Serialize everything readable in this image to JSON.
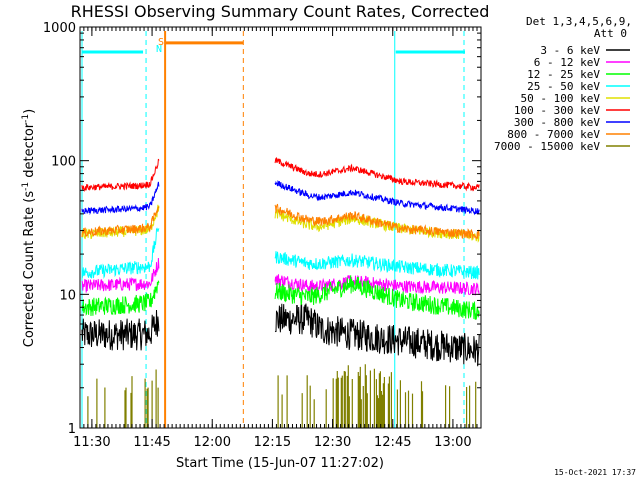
{
  "chart_data": {
    "type": "line",
    "title": "RHESSI Observing Summary Count Rates, Corrected",
    "xlabel": "Start Time (15-Jun-07 11:27:02)",
    "ylabel": "Corrected Count Rate (s",
    "ylabel_sup1": "-1",
    "ylabel_mid": " detector",
    "ylabel_sup2": "-1",
    "ylabel_end": ")",
    "y_scale": "log",
    "ylim": [
      1,
      1000
    ],
    "xlim": [
      "11:27:02",
      "13:07:00"
    ],
    "y_ticks": [
      "1",
      "10",
      "100",
      "1000"
    ],
    "x_ticks": [
      "11:30",
      "11:45",
      "12:00",
      "12:15",
      "12:30",
      "12:45",
      "13:00"
    ],
    "legend_header_1": "Det 1,3,4,5,6,9,",
    "legend_header_2": "Att 0",
    "legend_position": "right",
    "timestamp": "15-Oct-2021 17:37",
    "flag_n": "N",
    "flag_s": "S",
    "colors": {
      "night": "#00ffff",
      "saa": "#ff8000"
    },
    "series": [
      {
        "name": "3 - 6 keV",
        "color": "#000000",
        "values": [
          5,
          5,
          6.5,
          6.5,
          5.5,
          5,
          4.5,
          3.8
        ]
      },
      {
        "name": "6 - 12 keV",
        "color": "#ff00ff",
        "values": [
          11.5,
          12,
          13,
          11.5,
          11.5,
          12.5,
          11.5,
          11
        ]
      },
      {
        "name": "12 - 25 keV",
        "color": "#00ff00",
        "values": [
          8,
          8.5,
          10.5,
          9.5,
          10,
          12,
          9,
          7.5
        ]
      },
      {
        "name": "25 - 50 keV",
        "color": "#00ffff",
        "values": [
          14.5,
          16,
          19,
          17,
          17,
          18,
          16,
          14.5
        ]
      },
      {
        "name": "50 - 100 keV",
        "color": "#e0e000",
        "values": [
          28,
          30,
          40,
          33,
          32,
          37,
          31,
          27
        ]
      },
      {
        "name": "100 - 300 keV",
        "color": "#ff0000",
        "values": [
          63,
          65,
          100,
          80,
          79,
          88,
          70,
          63
        ]
      },
      {
        "name": "300 - 800 keV",
        "color": "#0000ff",
        "values": [
          42,
          44,
          68,
          55,
          53,
          58,
          48,
          42
        ]
      },
      {
        "name": "800 - 7000 keV",
        "color": "#ff8000",
        "values": [
          29,
          31,
          44,
          36,
          35,
          39,
          31,
          28
        ]
      },
      {
        "name": "7000 - 15000 keV",
        "color": "#808000",
        "values": [
          1,
          1,
          1,
          1,
          1,
          1,
          1,
          1
        ]
      }
    ]
  }
}
